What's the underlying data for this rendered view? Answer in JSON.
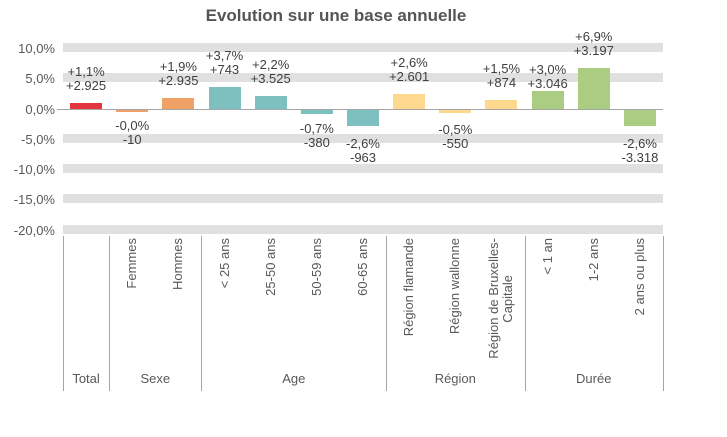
{
  "chart_data": {
    "type": "bar",
    "title": "Evolution sur une base annuelle",
    "y_axis": {
      "min": -20,
      "max": 10,
      "step": 5,
      "tick_labels": [
        "10,0%",
        "5,0%",
        "0,0%",
        "-5,0%",
        "-10,0%",
        "-15,0%",
        "-20,0%"
      ],
      "tick_values": [
        10,
        5,
        0,
        -5,
        -10,
        -15,
        -20
      ],
      "grid": "band"
    },
    "legend": "none",
    "groups": [
      {
        "label": "Total",
        "color": "#e4353e",
        "items": [
          {
            "category": "",
            "pct": 1.1,
            "pct_label": "+1,1%",
            "abs_label": "+2.925"
          }
        ]
      },
      {
        "label": "Sexe",
        "color": "#f0a266",
        "items": [
          {
            "category": "Femmes",
            "pct": -0.004,
            "pct_label": "-0,0%",
            "abs_label": "-10"
          },
          {
            "category": "Hommes",
            "pct": 1.9,
            "pct_label": "+1,9%",
            "abs_label": "+2.935"
          }
        ]
      },
      {
        "label": "Age",
        "color": "#7ec0bf",
        "items": [
          {
            "category": "< 25 ans",
            "pct": 3.7,
            "pct_label": "+3,7%",
            "abs_label": "+743"
          },
          {
            "category": "25-50 ans",
            "pct": 2.2,
            "pct_label": "+2,2%",
            "abs_label": "+3.525"
          },
          {
            "category": "50-59 ans",
            "pct": -0.7,
            "pct_label": "-0,7%",
            "abs_label": "-380"
          },
          {
            "category": "60-65 ans",
            "pct": -2.6,
            "pct_label": "-2,6%",
            "abs_label": "-963",
            "label_dy": 4
          }
        ]
      },
      {
        "label": "Région",
        "color": "#fdd88d",
        "items": [
          {
            "category": "Région flamande",
            "pct": 2.6,
            "pct_label": "+2,6%",
            "abs_label": "+2.601"
          },
          {
            "category": "Région wallonne",
            "pct": -0.5,
            "pct_label": "-0,5%",
            "abs_label": "-550",
            "label_dy": 2
          },
          {
            "category": "Région de Bruxelles-\nCapitale",
            "pct": 1.5,
            "pct_label": "+1,5%",
            "abs_label": "+874"
          }
        ]
      },
      {
        "label": "Durée",
        "color": "#aacd81",
        "items": [
          {
            "category": "< 1 an",
            "pct": 3.0,
            "pct_label": "+3,0%",
            "abs_label": "+3.046",
            "label_dy": 10
          },
          {
            "category": "1-2 ans",
            "pct": 6.9,
            "pct_label": "+6,9%",
            "abs_label": "+3.197"
          },
          {
            "category": "2 ans ou plus",
            "pct": -2.6,
            "pct_label": "-2,6%",
            "abs_label": "-3.318",
            "label_dy": 4
          }
        ]
      }
    ]
  }
}
